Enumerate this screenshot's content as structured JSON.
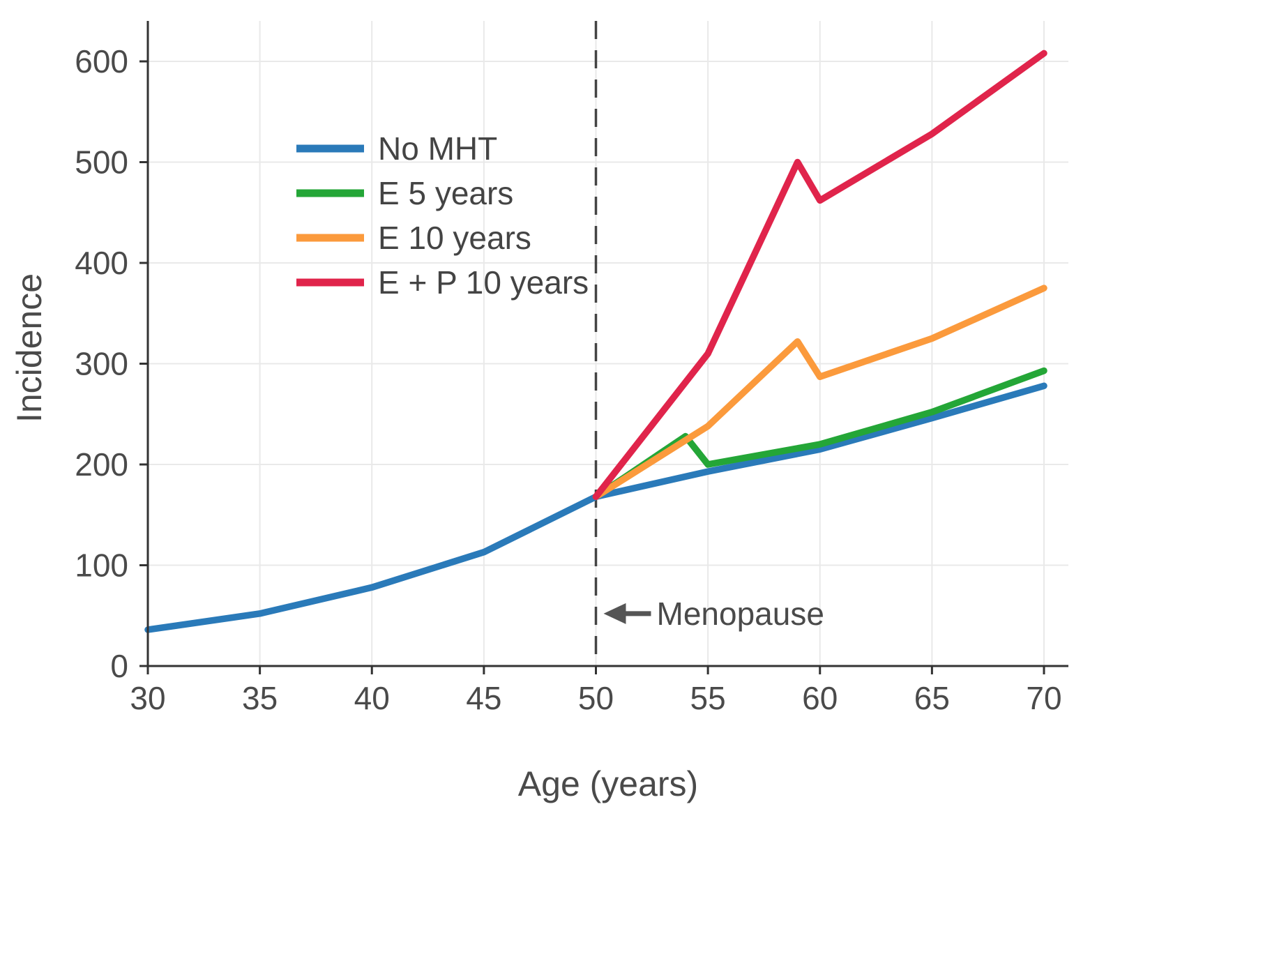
{
  "chart_data": {
    "type": "line",
    "title": "",
    "xlabel": "Age (years)",
    "ylabel": "Incidence",
    "xlim": [
      30,
      70
    ],
    "ylim": [
      0,
      650
    ],
    "xticks": [
      30,
      35,
      40,
      45,
      50,
      55,
      60,
      65,
      70
    ],
    "yticks": [
      0,
      100,
      200,
      300,
      400,
      500,
      600
    ],
    "grid": true,
    "legend_position": "upper-left",
    "axis_color": "#333333",
    "grid_color": "#e9e9e9",
    "text_color": "#4a4a4a",
    "vline": {
      "x": 50,
      "style": "dashed",
      "color": "#444444"
    },
    "annotations": [
      {
        "text": "Menopause",
        "x": 50,
        "y": 52,
        "arrow": "left"
      }
    ],
    "series": [
      {
        "name": "No MHT",
        "color": "#2a7ab9",
        "x": [
          30,
          35,
          40,
          45,
          50,
          55,
          60,
          65,
          70
        ],
        "y": [
          36,
          52,
          78,
          113,
          168,
          193,
          215,
          246,
          278
        ]
      },
      {
        "name": "E 5 years",
        "color": "#24a637",
        "x": [
          50,
          54,
          55,
          60,
          65,
          70
        ],
        "y": [
          168,
          228,
          200,
          220,
          252,
          293
        ]
      },
      {
        "name": "E 10 years",
        "color": "#fb9a3c",
        "x": [
          50,
          55,
          59,
          60,
          65,
          70
        ],
        "y": [
          168,
          238,
          322,
          287,
          325,
          375
        ]
      },
      {
        "name": "E + P 10 years",
        "color": "#e0244b",
        "x": [
          50,
          55,
          59,
          60,
          65,
          70
        ],
        "y": [
          168,
          310,
          500,
          462,
          528,
          608
        ]
      }
    ]
  }
}
